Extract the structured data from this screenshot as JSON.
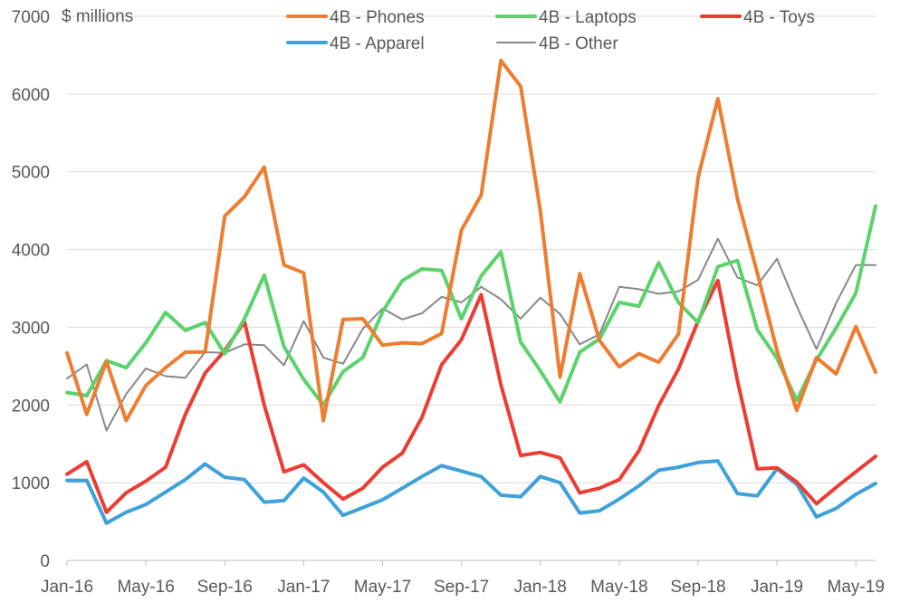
{
  "chart_data": {
    "type": "line",
    "title": "",
    "ylabel": "$ millions",
    "xlabel": "",
    "ylim": [
      0,
      7000
    ],
    "yticks": [
      0,
      1000,
      2000,
      3000,
      4000,
      5000,
      6000,
      7000
    ],
    "grid": "horizontal",
    "legend_position": "top",
    "x": [
      "Jan-16",
      "Feb-16",
      "Mar-16",
      "Apr-16",
      "May-16",
      "Jun-16",
      "Jul-16",
      "Aug-16",
      "Sep-16",
      "Oct-16",
      "Nov-16",
      "Dec-16",
      "Jan-17",
      "Feb-17",
      "Mar-17",
      "Apr-17",
      "May-17",
      "Jun-17",
      "Jul-17",
      "Aug-17",
      "Sep-17",
      "Oct-17",
      "Nov-17",
      "Dec-17",
      "Jan-18",
      "Feb-18",
      "Mar-18",
      "Apr-18",
      "May-18",
      "Jun-18",
      "Jul-18",
      "Aug-18",
      "Sep-18",
      "Oct-18",
      "Nov-18",
      "Dec-18",
      "Jan-19",
      "Feb-19",
      "Mar-19",
      "Apr-19",
      "May-19",
      "Jun-19"
    ],
    "xtick_labels": [
      "Jan-16",
      "May-16",
      "Sep-16",
      "Jan-17",
      "May-17",
      "Sep-17",
      "Jan-18",
      "May-18",
      "Sep-18",
      "Jan-19",
      "May-19"
    ],
    "series": [
      {
        "name": "4B - Phones",
        "color": "#ED7D31",
        "width": 4,
        "values": [
          2670,
          1880,
          2560,
          1800,
          2250,
          2480,
          2680,
          2680,
          4430,
          4680,
          5060,
          3800,
          3700,
          1800,
          3100,
          3110,
          2770,
          2800,
          2790,
          2920,
          4250,
          4700,
          6430,
          6100,
          4500,
          2360,
          3690,
          2830,
          2490,
          2660,
          2550,
          2910,
          4930,
          5940,
          4650,
          3700,
          2700,
          1930,
          2610,
          2400,
          3010,
          2420
        ]
      },
      {
        "name": "4B - Laptops",
        "color": "#5BD26C",
        "width": 4,
        "values": [
          2160,
          2120,
          2570,
          2480,
          2800,
          3190,
          2960,
          3060,
          2660,
          3110,
          3670,
          2750,
          2330,
          2000,
          2430,
          2610,
          3200,
          3600,
          3750,
          3730,
          3110,
          3660,
          3970,
          2810,
          2440,
          2040,
          2680,
          2850,
          3320,
          3270,
          3830,
          3320,
          3060,
          3780,
          3860,
          2970,
          2600,
          2060,
          2580,
          2990,
          3440,
          4560
        ]
      },
      {
        "name": "4B - Toys",
        "color": "#EB3D33",
        "width": 4,
        "values": [
          1110,
          1270,
          620,
          870,
          1020,
          1200,
          1880,
          2410,
          2700,
          3070,
          2000,
          1140,
          1230,
          1000,
          790,
          930,
          1200,
          1380,
          1840,
          2520,
          2840,
          3420,
          2260,
          1350,
          1390,
          1320,
          870,
          930,
          1040,
          1410,
          1990,
          2460,
          3080,
          3600,
          2310,
          1180,
          1190,
          1010,
          730,
          940,
          1140,
          1340
        ]
      },
      {
        "name": "4B - Apparel",
        "color": "#3EA1DA",
        "width": 4,
        "values": [
          1030,
          1030,
          480,
          620,
          720,
          880,
          1040,
          1240,
          1070,
          1040,
          750,
          770,
          1060,
          880,
          580,
          680,
          780,
          930,
          1080,
          1220,
          1150,
          1080,
          840,
          820,
          1080,
          1000,
          610,
          640,
          790,
          960,
          1160,
          1200,
          1260,
          1280,
          860,
          830,
          1180,
          980,
          560,
          670,
          850,
          990
        ]
      },
      {
        "name": "4B - Other",
        "color": "#888888",
        "width": 2,
        "values": [
          2340,
          2520,
          1670,
          2140,
          2470,
          2370,
          2350,
          2680,
          2670,
          2780,
          2770,
          2510,
          3080,
          2610,
          2530,
          2980,
          3240,
          3100,
          3180,
          3390,
          3320,
          3520,
          3360,
          3110,
          3380,
          3170,
          2780,
          2910,
          3520,
          3490,
          3430,
          3460,
          3610,
          4140,
          3640,
          3540,
          3880,
          3270,
          2720,
          3310,
          3800,
          3800
        ]
      }
    ],
    "legend": [
      {
        "label": "4B - Phones"
      },
      {
        "label": "4B - Laptops"
      },
      {
        "label": "4B - Toys"
      },
      {
        "label": "4B - Apparel"
      },
      {
        "label": "4B - Other"
      }
    ]
  }
}
